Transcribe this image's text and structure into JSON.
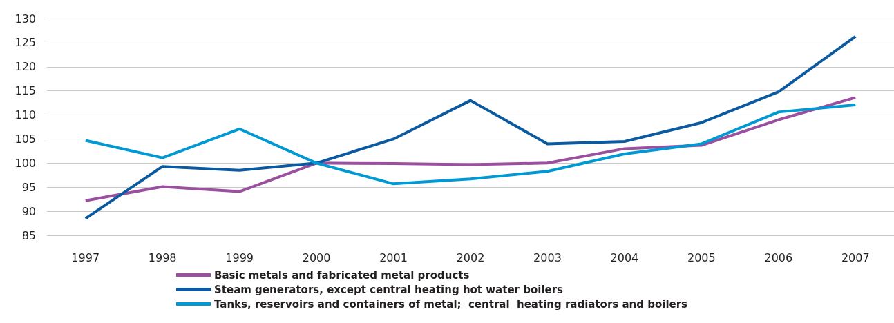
{
  "chart_data": {
    "type": "line",
    "categories": [
      "1997",
      "1998",
      "1999",
      "2000",
      "2001",
      "2002",
      "2003",
      "2004",
      "2005",
      "2006",
      "2007"
    ],
    "series": [
      {
        "name": "Basic metals and fabricated metal products",
        "color": "#9b4f9f",
        "values": [
          92.2,
          95.1,
          94.1,
          100,
          99.9,
          99.7,
          100,
          103,
          103.7,
          109,
          113.6
        ]
      },
      {
        "name": "Steam generators, except central heating hot water boilers",
        "color": "#0b5aa0",
        "values": [
          88.5,
          99.3,
          98.5,
          100,
          105,
          113,
          104,
          104.5,
          108.4,
          114.8,
          126.3
        ]
      },
      {
        "name": "Tanks, reservoirs and containers of metal;  central  heating radiators and boilers",
        "color": "#0099d4",
        "values": [
          104.7,
          101.1,
          107.1,
          100,
          95.7,
          96.7,
          98.3,
          101.9,
          104,
          110.6,
          112.1
        ]
      }
    ],
    "ylim": [
      85,
      130
    ],
    "yticks": [
      85,
      90,
      95,
      100,
      105,
      110,
      115,
      120,
      125,
      130
    ],
    "grid": "y",
    "legend": "bottom",
    "marker": "none",
    "line_style": "solid"
  }
}
